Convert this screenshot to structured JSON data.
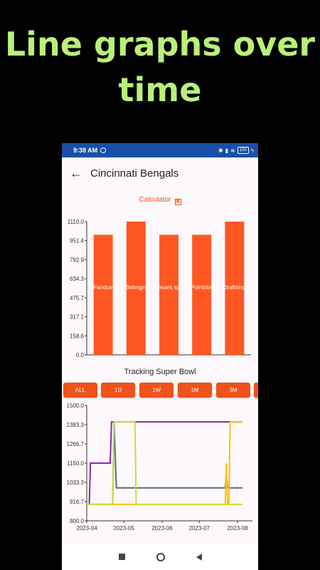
{
  "headline": "Line graphs over time",
  "status": {
    "time": "9:38 AM",
    "battery": "100"
  },
  "appbar": {
    "title": "Cincinnati Bengals"
  },
  "calculator_label": "Calculator",
  "tracking_title": "Tracking Super Bowl",
  "chips": [
    "ALL",
    "1D",
    "1W",
    "1M",
    "3M"
  ],
  "colors": {
    "accent": "#f0521a",
    "status_bar": "#1a4fa8",
    "headline": "#b9f07a"
  },
  "chart_data": [
    {
      "type": "bar",
      "categories": [
        "Fanduel",
        "Betmgm",
        "Caesars sportsbook",
        "Pointsbet",
        "Draftkings"
      ],
      "visible_category_labels": [
        "Fandue",
        "Betmgm",
        "Caesars sport",
        "Pointsbe",
        "Draftking"
      ],
      "values": [
        1000,
        1110,
        1000,
        1000,
        1110
      ],
      "y_ticks": [
        "0.0",
        "158.6",
        "317.1",
        "475.7",
        "634.3",
        "792.9",
        "951.4",
        "1110.0"
      ],
      "ylim": [
        0,
        1110
      ],
      "color": "#ff5722"
    },
    {
      "type": "line",
      "x_ticks": [
        "2023-04",
        "2023-05",
        "2023-06",
        "2023-07",
        "2023-08"
      ],
      "y_ticks": [
        "800.0",
        "916.7",
        "1033.3",
        "1150.0",
        "1266.7",
        "1383.3",
        "1500.0"
      ],
      "ylim": [
        800,
        1500
      ],
      "xlim": [
        "2023-04-01",
        "2023-08-05"
      ],
      "series": [
        {
          "color": "#8e24aa",
          "points": [
            [
              "2023-04-01",
              900
            ],
            [
              "2023-04-03",
              900
            ],
            [
              "2023-04-04",
              1150
            ],
            [
              "2023-04-20",
              1150
            ],
            [
              "2023-04-21",
              1400
            ],
            [
              "2023-08-05",
              1400
            ]
          ]
        },
        {
          "color": "#546e7a",
          "points": [
            [
              "2023-04-01",
              900
            ],
            [
              "2023-04-22",
              900
            ],
            [
              "2023-04-23",
              1400
            ],
            [
              "2023-04-25",
              1000
            ],
            [
              "2023-07-22",
              1000
            ],
            [
              "2023-07-23",
              1080
            ],
            [
              "2023-07-24",
              1000
            ],
            [
              "2023-08-05",
              1000
            ]
          ]
        },
        {
          "color": "#ffc107",
          "points": [
            [
              "2023-04-01",
              900
            ],
            [
              "2023-07-22",
              900
            ],
            [
              "2023-07-23",
              1150
            ],
            [
              "2023-07-24",
              900
            ],
            [
              "2023-07-25",
              900
            ],
            [
              "2023-07-26",
              1400
            ],
            [
              "2023-08-05",
              1400
            ]
          ]
        },
        {
          "color": "#cddc39",
          "points": [
            [
              "2023-04-01",
              900
            ],
            [
              "2023-04-22",
              900
            ],
            [
              "2023-04-23",
              1400
            ],
            [
              "2023-05-10",
              1400
            ],
            [
              "2023-05-11",
              900
            ],
            [
              "2023-08-05",
              900
            ]
          ]
        }
      ]
    }
  ]
}
